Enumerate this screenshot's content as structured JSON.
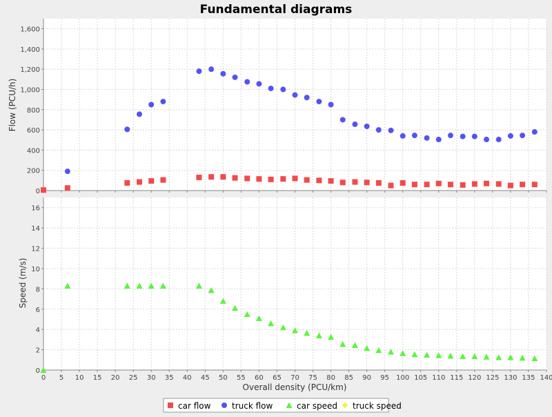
{
  "chart_data": {
    "type": "scatter",
    "title": "Fundamental diagrams",
    "xlabel": "Overall density (PCU/km)",
    "xlim": [
      0,
      140
    ],
    "x_ticks": [
      "0",
      "5",
      "10",
      "15",
      "20",
      "25",
      "30",
      "35",
      "40",
      "45",
      "50",
      "55",
      "60",
      "65",
      "70",
      "75",
      "80",
      "85",
      "90",
      "95",
      "100",
      "105",
      "110",
      "115",
      "120",
      "125",
      "130",
      "135",
      "140"
    ],
    "grid": true,
    "legend_position": "bottom",
    "colors": {
      "background": "#eeeeee",
      "plot_background": "#ffffff",
      "gridline": "#d8d8d8",
      "car_flow": "#f24a4a",
      "truck_flow": "#5353f4",
      "car_speed": "#5cf43f",
      "truck_speed": "#f4f43a"
    },
    "subplots": [
      {
        "id": "flow",
        "ylabel": "Flow (PCU/h)",
        "ylim": [
          0,
          1700
        ],
        "y_ticks": [
          "0",
          "200",
          "400",
          "600",
          "800",
          "1,000",
          "1,200",
          "1,400",
          "1,600"
        ],
        "series": [
          {
            "name": "car flow",
            "marker": "square",
            "points": [
              [
                0,
                5
              ],
              [
                6.7,
                25
              ],
              [
                23.3,
                75
              ],
              [
                26.7,
                85
              ],
              [
                30,
                95
              ],
              [
                33.3,
                105
              ],
              [
                43.3,
                130
              ],
              [
                46.7,
                135
              ],
              [
                50,
                135
              ],
              [
                53.3,
                125
              ],
              [
                56.7,
                120
              ],
              [
                60,
                115
              ],
              [
                63.3,
                110
              ],
              [
                66.7,
                115
              ],
              [
                70,
                120
              ],
              [
                73.3,
                105
              ],
              [
                76.7,
                100
              ],
              [
                80,
                95
              ],
              [
                83.3,
                80
              ],
              [
                86.7,
                85
              ],
              [
                90,
                80
              ],
              [
                93.3,
                75
              ],
              [
                96.7,
                50
              ],
              [
                100,
                75
              ],
              [
                103.3,
                60
              ],
              [
                106.7,
                60
              ],
              [
                110,
                70
              ],
              [
                113.3,
                60
              ],
              [
                116.7,
                55
              ],
              [
                120,
                65
              ],
              [
                123.3,
                70
              ],
              [
                126.7,
                65
              ],
              [
                130,
                50
              ],
              [
                133.3,
                60
              ],
              [
                136.7,
                60
              ]
            ]
          },
          {
            "name": "truck flow",
            "marker": "circle",
            "points": [
              [
                6.7,
                190
              ],
              [
                23.3,
                605
              ],
              [
                26.7,
                755
              ],
              [
                30,
                850
              ],
              [
                33.3,
                880
              ],
              [
                43.3,
                1180
              ],
              [
                46.7,
                1200
              ],
              [
                50,
                1155
              ],
              [
                53.3,
                1120
              ],
              [
                56.7,
                1075
              ],
              [
                60,
                1055
              ],
              [
                63.3,
                1010
              ],
              [
                66.7,
                1000
              ],
              [
                70,
                945
              ],
              [
                73.3,
                920
              ],
              [
                76.7,
                880
              ],
              [
                80,
                850
              ],
              [
                83.3,
                700
              ],
              [
                86.7,
                655
              ],
              [
                90,
                635
              ],
              [
                93.3,
                600
              ],
              [
                96.7,
                595
              ],
              [
                100,
                540
              ],
              [
                103.3,
                545
              ],
              [
                106.7,
                520
              ],
              [
                110,
                505
              ],
              [
                113.3,
                545
              ],
              [
                116.7,
                535
              ],
              [
                120,
                535
              ],
              [
                123.3,
                505
              ],
              [
                126.7,
                505
              ],
              [
                130,
                540
              ],
              [
                133.3,
                545
              ],
              [
                136.7,
                580
              ]
            ]
          }
        ]
      },
      {
        "id": "speed",
        "ylabel": "Speed (m/s)",
        "ylim": [
          0,
          17
        ],
        "y_ticks": [
          "0",
          "2",
          "4",
          "6",
          "8",
          "10",
          "12",
          "14",
          "16"
        ],
        "series": [
          {
            "name": "car speed",
            "marker": "triangle",
            "points": [
              [
                0,
                0
              ],
              [
                6.7,
                8.3
              ],
              [
                23.3,
                8.3
              ],
              [
                26.7,
                8.3
              ],
              [
                30,
                8.3
              ],
              [
                33.3,
                8.3
              ],
              [
                43.3,
                8.3
              ],
              [
                46.7,
                7.85
              ],
              [
                50,
                6.8
              ],
              [
                53.3,
                6.1
              ],
              [
                56.7,
                5.5
              ],
              [
                60,
                5.1
              ],
              [
                63.3,
                4.6
              ],
              [
                66.7,
                4.2
              ],
              [
                70,
                3.9
              ],
              [
                73.3,
                3.65
              ],
              [
                76.7,
                3.4
              ],
              [
                80,
                3.25
              ],
              [
                83.3,
                2.55
              ],
              [
                86.7,
                2.45
              ],
              [
                90,
                2.15
              ],
              [
                93.3,
                1.95
              ],
              [
                96.7,
                1.8
              ],
              [
                100,
                1.65
              ],
              [
                103.3,
                1.55
              ],
              [
                106.7,
                1.5
              ],
              [
                110,
                1.45
              ],
              [
                113.3,
                1.4
              ],
              [
                116.7,
                1.35
              ],
              [
                120,
                1.35
              ],
              [
                123.3,
                1.3
              ],
              [
                126.7,
                1.25
              ],
              [
                130,
                1.25
              ],
              [
                133.3,
                1.2
              ],
              [
                136.7,
                1.15
              ]
            ]
          },
          {
            "name": "truck speed",
            "marker": "diamond",
            "points": []
          }
        ]
      }
    ],
    "legend": [
      {
        "name": "car flow",
        "marker": "square",
        "color_key": "car_flow"
      },
      {
        "name": "truck flow",
        "marker": "circle",
        "color_key": "truck_flow"
      },
      {
        "name": "car speed",
        "marker": "triangle",
        "color_key": "car_speed"
      },
      {
        "name": "truck speed",
        "marker": "diamond",
        "color_key": "truck_speed"
      }
    ]
  }
}
